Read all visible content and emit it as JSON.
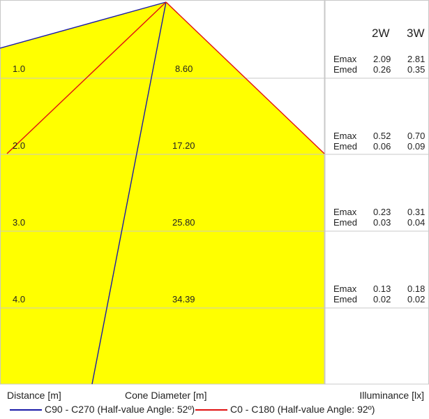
{
  "series": [
    {
      "name": "C90 - C270 (Half-value Angle: 52º)",
      "color": "#1a1aa8"
    },
    {
      "name": "C0 - C180 (Half-value Angle: 92º)",
      "color": "#e01010"
    }
  ],
  "columns": [
    "2W",
    "3W"
  ],
  "rows": [
    {
      "distance": "1.0",
      "diameter": "8.60",
      "emax": [
        "2.09",
        "2.81"
      ],
      "emed": [
        "0.26",
        "0.35"
      ]
    },
    {
      "distance": "2.0",
      "diameter": "17.20",
      "emax": [
        "0.52",
        "0.70"
      ],
      "emed": [
        "0.06",
        "0.09"
      ]
    },
    {
      "distance": "3.0",
      "diameter": "25.80",
      "emax": [
        "0.23",
        "0.31"
      ],
      "emed": [
        "0.03",
        "0.04"
      ]
    },
    {
      "distance": "4.0",
      "diameter": "34.39",
      "emax": [
        "0.13",
        "0.18"
      ],
      "emed": [
        "0.02",
        "0.02"
      ]
    }
  ],
  "labels": {
    "emax": "Emax",
    "emed": "Emed",
    "distance": "Distance [m]",
    "cone": "Cone Diameter [m]",
    "illuminance": "Illuminance [lx]"
  },
  "colors": {
    "fill": "#ffff00",
    "grid": "#c8c8c8"
  }
}
